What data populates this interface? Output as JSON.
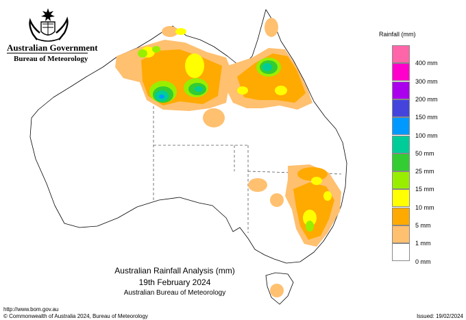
{
  "header": {
    "government": "Australian Government",
    "bureau": "Bureau of Meteorology"
  },
  "title": {
    "line1": "Australian Rainfall Analysis (mm)",
    "line2": "19th February 2024",
    "line3": "Australian Bureau of Meteorology"
  },
  "footer": {
    "url": "http://www.bom.gov.au",
    "copyright": "© Commonwealth of Australia 2024, Bureau of Meteorology",
    "issued": "Issued: 19/02/2024"
  },
  "legend": {
    "title": "Rainfall (mm)",
    "items": [
      {
        "label": "",
        "color": "#ff66aa"
      },
      {
        "label": "400 mm",
        "color": "#ff00cc"
      },
      {
        "label": "300 mm",
        "color": "#aa00ee"
      },
      {
        "label": "200 mm",
        "color": "#4444dd"
      },
      {
        "label": "150 mm",
        "color": "#0099ff"
      },
      {
        "label": "100 mm",
        "color": "#00cc99"
      },
      {
        "label": "50 mm",
        "color": "#33cc33"
      },
      {
        "label": "25 mm",
        "color": "#99ee00"
      },
      {
        "label": "15 mm",
        "color": "#ffff00"
      },
      {
        "label": "10 mm",
        "color": "#ffaa00"
      },
      {
        "label": "5 mm",
        "color": "#ffc070"
      },
      {
        "label": "1 mm",
        "color": "#ffffff"
      },
      {
        "label": "0 mm",
        "color": null
      }
    ]
  }
}
